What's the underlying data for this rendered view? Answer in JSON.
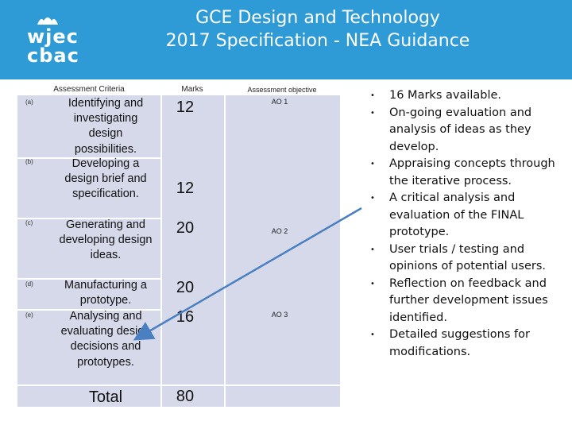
{
  "logo": {
    "line1": "wjec",
    "line2": "cbac"
  },
  "title": {
    "line1": "GCE Design and Technology",
    "line2": "2017 Specification  - NEA Guidance"
  },
  "table": {
    "headers": {
      "criteria": "Assessment Criteria",
      "marks": "Marks",
      "objective": "Assessment objective"
    },
    "rows": [
      {
        "letter": "(a)",
        "text": "Identifying and investigating design possibilities.",
        "mark": "12",
        "ao": "AO 1"
      },
      {
        "letter": "(b)",
        "text": "Developing a design brief and specification.",
        "mark": "12",
        "ao": ""
      },
      {
        "letter": "(c)",
        "text": "Generating and developing design ideas.",
        "mark": "20",
        "ao": "AO 2"
      },
      {
        "letter": "(d)",
        "text": "Manufacturing a prototype.",
        "mark": "20",
        "ao": ""
      },
      {
        "letter": "(e)",
        "text": "Analysing and evaluating design decisions and prototypes.",
        "mark": "16",
        "ao": "AO 3"
      }
    ],
    "total_label": "Total",
    "total_value": "80"
  },
  "bullets": [
    "16 Marks available.",
    "On-going evaluation and analysis of ideas as they develop.",
    "Appraising concepts through the iterative process.",
    "A critical analysis and evaluation of the FINAL prototype.",
    "User trials  / testing and opinions of potential users.",
    "Reflection on feedback and further development issues identified.",
    "Detailed suggestions for modifications."
  ],
  "colors": {
    "header": "#2e9ad6",
    "cell": "#d5d9ea",
    "arrow": "#4a7fc1"
  }
}
